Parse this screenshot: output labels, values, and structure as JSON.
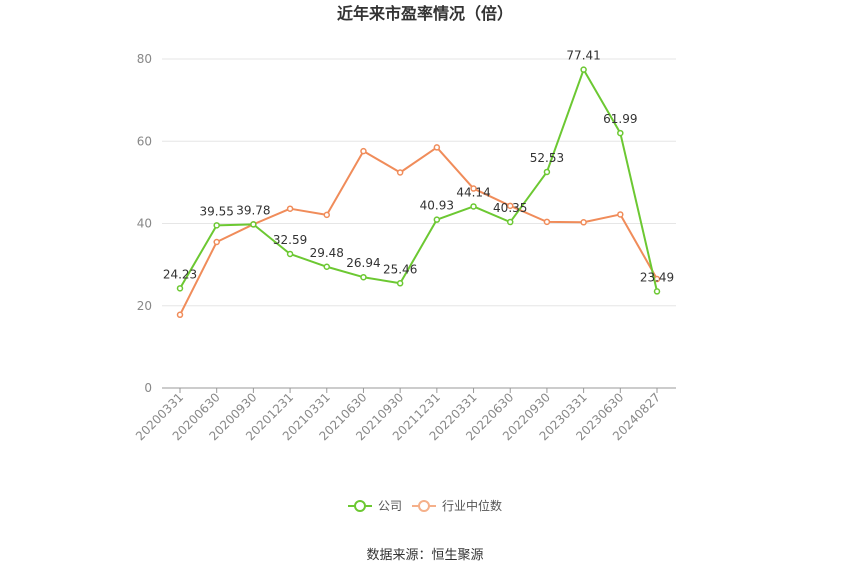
{
  "chart_data": {
    "type": "line",
    "title": "近年来市盈率情况（倍）",
    "categories": [
      "20200331",
      "20200630",
      "20200930",
      "20201231",
      "20210331",
      "20210630",
      "20210930",
      "20211231",
      "20220331",
      "20220630",
      "20220930",
      "20230331",
      "20230630",
      "20240827"
    ],
    "series": [
      {
        "name": "公司",
        "color": "#6CC832",
        "values": [
          24.23,
          39.55,
          39.78,
          32.59,
          29.48,
          26.94,
          25.46,
          40.93,
          44.14,
          40.35,
          52.53,
          77.41,
          61.99,
          23.49
        ],
        "labels": [
          "24.23",
          "39.55",
          "39.78",
          "32.59",
          "29.48",
          "26.94",
          "25.46",
          "40.93",
          "44.14",
          "40.35",
          "52.53",
          "77.41",
          "61.99",
          "23.49"
        ]
      },
      {
        "name": "行业中位数",
        "color": "#F08C5A",
        "values": [
          17.8,
          35.5,
          39.8,
          43.6,
          42.1,
          57.6,
          52.4,
          58.5,
          48.5,
          44.3,
          40.4,
          40.3,
          42.2,
          26.5
        ]
      }
    ],
    "yticks": [
      "0",
      "20",
      "40",
      "60",
      "80"
    ],
    "ylim": [
      0,
      80
    ],
    "grid": true,
    "legend": "bottom-center"
  },
  "source_text": "数据来源：恒生聚源"
}
